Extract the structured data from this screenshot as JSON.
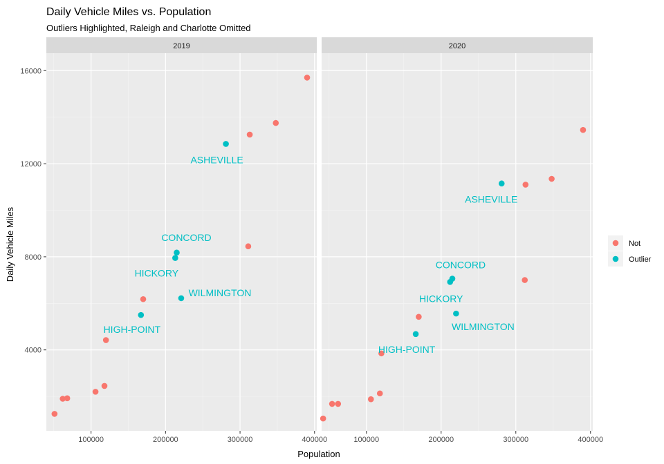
{
  "chart_data": {
    "type": "scatter",
    "title": "Daily Vehicle Miles vs. Population",
    "subtitle": "Outliers Highlighted, Raleigh and Charlotte Omitted",
    "xlabel": "Population",
    "ylabel": "Daily Vehicle Miles",
    "xlim": [
      40000,
      403000
    ],
    "ylim": [
      520,
      16750
    ],
    "x_ticks": [
      100000,
      200000,
      300000,
      400000
    ],
    "x_tick_labels": [
      "100000",
      "200000",
      "300000",
      "400000"
    ],
    "y_ticks": [
      4000,
      8000,
      12000,
      16000
    ],
    "y_tick_labels": [
      "4000",
      "8000",
      "12000",
      "16000"
    ],
    "grid": true,
    "legend_position": "right",
    "legend": [
      {
        "key": "Not",
        "label": "Not",
        "color": "#F8766D"
      },
      {
        "key": "Outlier",
        "label": "Outlier",
        "color": "#00BFC4"
      }
    ],
    "panels": [
      {
        "strip": "2019",
        "points": [
          {
            "x": 51000,
            "y": 1250,
            "group": "Not"
          },
          {
            "x": 62000,
            "y": 1900,
            "group": "Not"
          },
          {
            "x": 68000,
            "y": 1920,
            "group": "Not"
          },
          {
            "x": 106000,
            "y": 2200,
            "group": "Not"
          },
          {
            "x": 118000,
            "y": 2450,
            "group": "Not"
          },
          {
            "x": 120000,
            "y": 4420,
            "group": "Not"
          },
          {
            "x": 167000,
            "y": 5500,
            "group": "Outlier",
            "label": "HIGH-POINT"
          },
          {
            "x": 170000,
            "y": 6180,
            "group": "Not"
          },
          {
            "x": 213000,
            "y": 7950,
            "group": "Outlier",
            "label": "HICKORY"
          },
          {
            "x": 215000,
            "y": 8180,
            "group": "Outlier",
            "label": "CONCORD"
          },
          {
            "x": 221000,
            "y": 6220,
            "group": "Outlier",
            "label": "WILMINGTON"
          },
          {
            "x": 281000,
            "y": 12850,
            "group": "Outlier",
            "label": "ASHEVILLE"
          },
          {
            "x": 311000,
            "y": 8450,
            "group": "Not"
          },
          {
            "x": 313000,
            "y": 13250,
            "group": "Not"
          },
          {
            "x": 348000,
            "y": 13750,
            "group": "Not"
          },
          {
            "x": 390000,
            "y": 15700,
            "group": "Not"
          }
        ]
      },
      {
        "strip": "2020",
        "points": [
          {
            "x": 42000,
            "y": 1050,
            "group": "Not"
          },
          {
            "x": 54000,
            "y": 1680,
            "group": "Not"
          },
          {
            "x": 62000,
            "y": 1680,
            "group": "Not"
          },
          {
            "x": 106000,
            "y": 1880,
            "group": "Not"
          },
          {
            "x": 118000,
            "y": 2130,
            "group": "Not"
          },
          {
            "x": 120000,
            "y": 3850,
            "group": "Not"
          },
          {
            "x": 166000,
            "y": 4680,
            "group": "Outlier",
            "label": "HIGH-POINT"
          },
          {
            "x": 170000,
            "y": 5420,
            "group": "Not"
          },
          {
            "x": 212000,
            "y": 6920,
            "group": "Outlier",
            "label": "HICKORY"
          },
          {
            "x": 215000,
            "y": 7060,
            "group": "Outlier",
            "label": "CONCORD"
          },
          {
            "x": 220000,
            "y": 5560,
            "group": "Outlier",
            "label": "WILMINGTON"
          },
          {
            "x": 281000,
            "y": 11150,
            "group": "Outlier",
            "label": "ASHEVILLE"
          },
          {
            "x": 312000,
            "y": 7000,
            "group": "Not"
          },
          {
            "x": 313000,
            "y": 11100,
            "group": "Not"
          },
          {
            "x": 348000,
            "y": 11350,
            "group": "Not"
          },
          {
            "x": 390000,
            "y": 13450,
            "group": "Not"
          }
        ]
      }
    ]
  }
}
